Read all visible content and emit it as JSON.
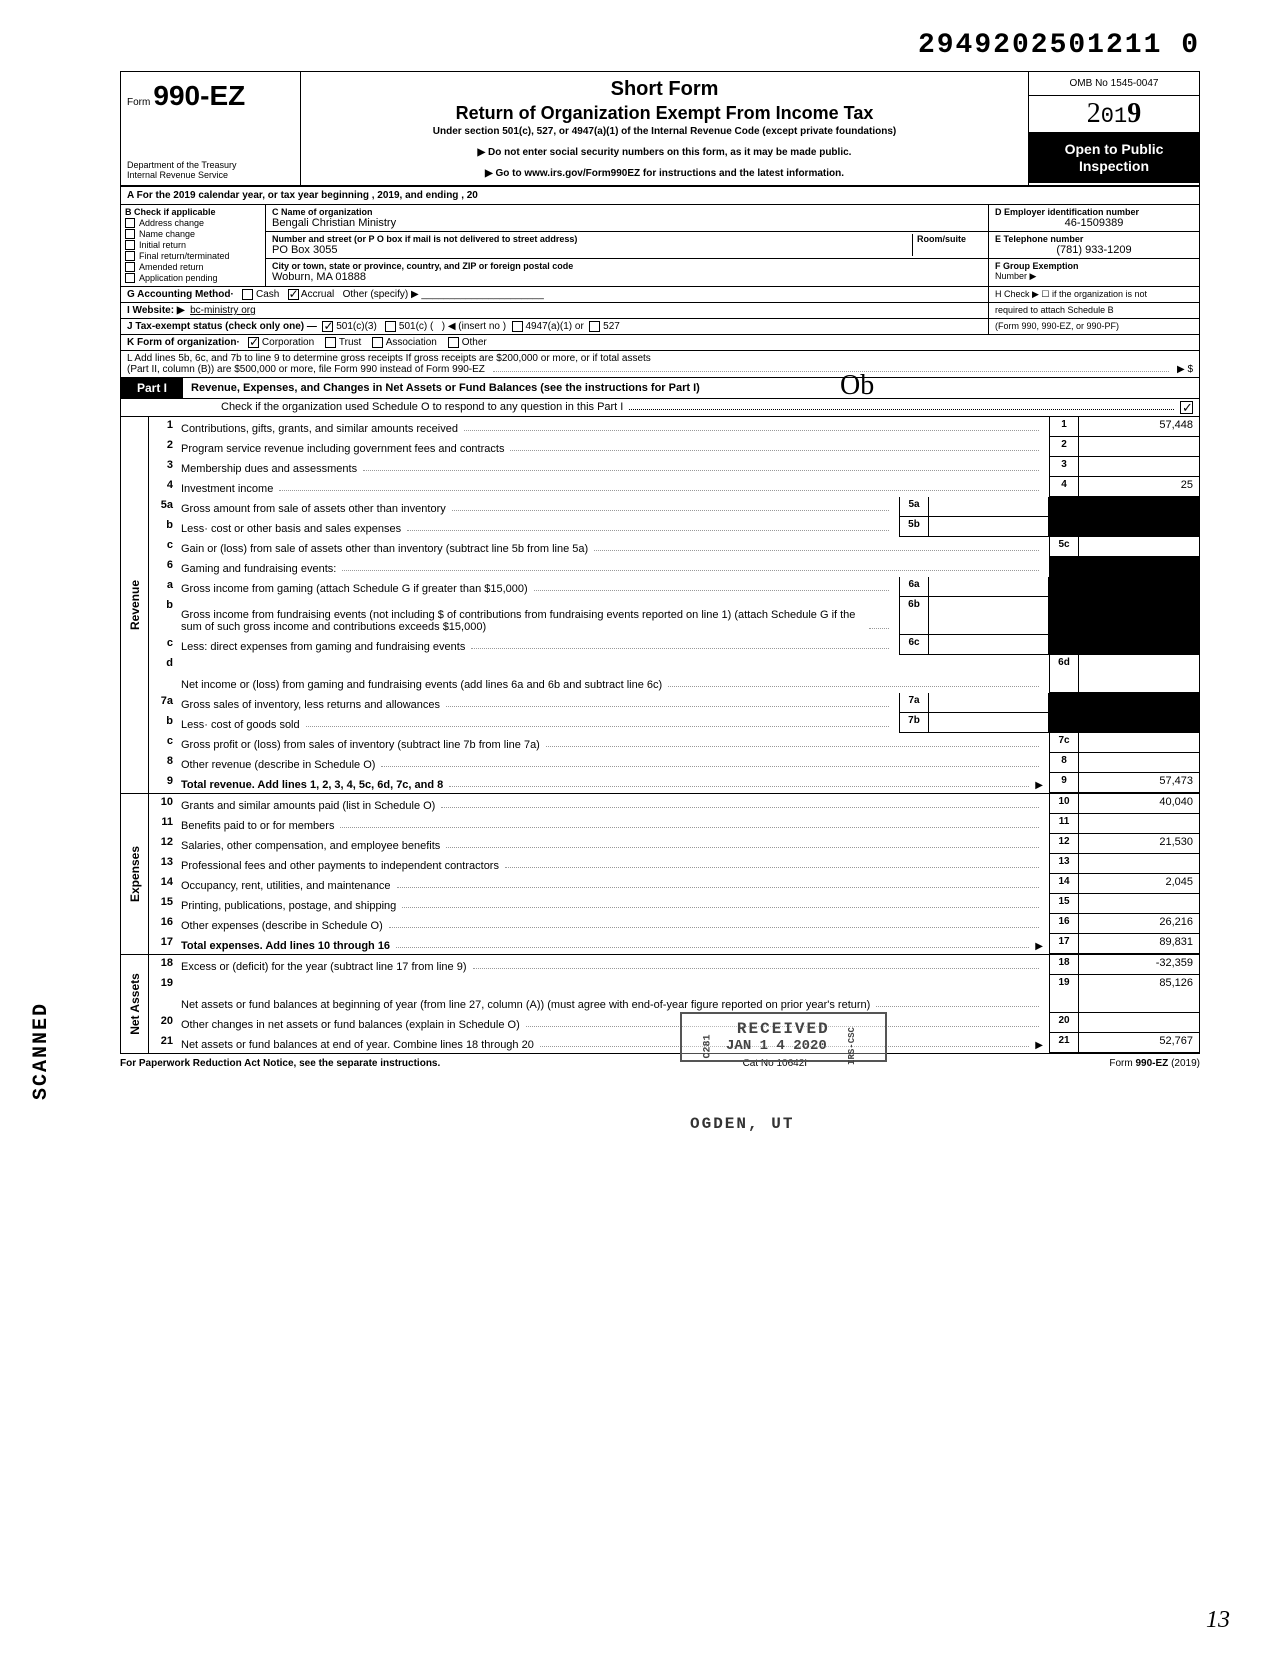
{
  "dln": "2949202501211 0",
  "header": {
    "form_prefix": "Form",
    "form_number": "990-EZ",
    "short_form": "Short Form",
    "title": "Return of Organization Exempt From Income Tax",
    "under": "Under section 501(c), 527, or 4947(a)(1) of the Internal Revenue Code (except private foundations)",
    "warn1": "▶ Do not enter social security numbers on this form, as it may be made public.",
    "warn2": "▶ Go to www.irs.gov/Form990EZ for instructions and the latest information.",
    "dept1": "Department of the Treasury",
    "dept2": "Internal Revenue Service",
    "omb": "OMB No 1545-0047",
    "year_outline": "2",
    "year_mid": "01",
    "year_bold": "9",
    "open_public": "Open to Public Inspection"
  },
  "rowA": "A  For the 2019 calendar year, or tax year beginning                                                          , 2019, and ending                                      , 20",
  "colB": {
    "title": "B  Check if applicable",
    "items": [
      "Address change",
      "Name change",
      "Initial return",
      "Final return/terminated",
      "Amended return",
      "Application pending"
    ]
  },
  "colC": {
    "name_lbl": "C  Name of organization",
    "name": "Bengali Christian Ministry",
    "street_lbl": "Number and street (or P O  box if mail is not delivered to street address)",
    "room_lbl": "Room/suite",
    "street": "PO Box 3055",
    "city_lbl": "City or town, state or province, country, and ZIP or foreign postal code",
    "city": "Woburn, MA  01888"
  },
  "colDE": {
    "d_lbl": "D Employer identification number",
    "ein": "46-1509389",
    "e_lbl": "E  Telephone number",
    "phone": "(781) 933-1209",
    "f_lbl": "F  Group Exemption",
    "f_lbl2": "Number  ▶"
  },
  "rowG": {
    "left": "G  Accounting Method·",
    "cash": "Cash",
    "accrual": "Accrual",
    "other": "Other (specify) ▶",
    "h": "H  Check ▶ ☐ if the organization is not"
  },
  "rowI": {
    "lbl": "I   Website: ▶",
    "val": "bc-ministry org",
    "h2": "required to attach Schedule B"
  },
  "rowJ": {
    "lbl": "J  Tax-exempt status (check only one) —",
    "c3": "501(c)(3)",
    "c": "501(c) (",
    "insert": ") ◀ (insert no )",
    "a1": "4947(a)(1) or",
    "s527": "527",
    "h3": "(Form 990, 990-EZ, or 990-PF)"
  },
  "rowK": {
    "lbl": "K  Form of organization·",
    "corp": "Corporation",
    "trust": "Trust",
    "assoc": "Association",
    "other": "Other"
  },
  "rowL": {
    "l1": "L  Add lines 5b, 6c, and 7b to line 9 to determine gross receipts  If gross receipts are $200,000 or more, or if total assets",
    "l2": "(Part II, column (B)) are $500,000 or more, file Form 990 instead of Form 990-EZ",
    "arrow": "▶    $"
  },
  "part1": {
    "label": "Part I",
    "title": "Revenue, Expenses, and Changes in Net Assets or Fund Balances (see the instructions for Part I)",
    "check_line": "Check if the organization used Schedule O to respond to any question in this Part I"
  },
  "sections": [
    {
      "side": "Revenue",
      "rows": [
        {
          "n": "1",
          "d": "Contributions, gifts, grants, and similar amounts received",
          "rn": "1",
          "rv": "57,448"
        },
        {
          "n": "2",
          "d": "Program service revenue including government fees and contracts",
          "rn": "2",
          "rv": ""
        },
        {
          "n": "3",
          "d": "Membership dues and assessments",
          "rn": "3",
          "rv": ""
        },
        {
          "n": "4",
          "d": "Investment income",
          "rn": "4",
          "rv": "25"
        },
        {
          "n": "5a",
          "d": "Gross amount from sale of assets other than inventory",
          "mb": "5a",
          "shadeR": true
        },
        {
          "n": "b",
          "d": "Less· cost or other basis and sales expenses",
          "mb": "5b",
          "shadeR": true
        },
        {
          "n": "c",
          "d": "Gain or (loss) from sale of assets other than inventory (subtract line 5b from line 5a)",
          "rn": "5c",
          "rv": ""
        },
        {
          "n": "6",
          "d": "Gaming and fundraising events:",
          "shadeR": true,
          "noRtBorder": true
        },
        {
          "n": "a",
          "d": "Gross income from gaming (attach Schedule G if greater than $15,000)",
          "mb": "6a",
          "shadeR": true
        },
        {
          "n": "b",
          "d": "Gross income from fundraising events (not including  $                           of contributions from fundraising events reported on line 1) (attach Schedule G if the sum of such gross income and contributions exceeds $15,000)",
          "mb": "6b",
          "shadeR": true,
          "tall": true
        },
        {
          "n": "c",
          "d": "Less: direct expenses from gaming and fundraising events",
          "mb": "6c",
          "shadeR": true
        },
        {
          "n": "d",
          "d": "Net income or (loss) from gaming and fundraising events (add lines 6a and 6b and subtract line 6c)",
          "rn": "6d",
          "rv": "",
          "tall": true
        },
        {
          "n": "7a",
          "d": "Gross sales of inventory, less returns and allowances",
          "mb": "7a",
          "shadeR": true
        },
        {
          "n": "b",
          "d": "Less· cost of goods sold",
          "mb": "7b",
          "shadeR": true
        },
        {
          "n": "c",
          "d": "Gross profit or (loss) from sales of inventory (subtract line 7b from line 7a)",
          "rn": "7c",
          "rv": ""
        },
        {
          "n": "8",
          "d": "Other revenue (describe in Schedule O)",
          "rn": "8",
          "rv": ""
        },
        {
          "n": "9",
          "d": "Total revenue. Add lines 1, 2, 3, 4, 5c, 6d, 7c, and 8",
          "rn": "9",
          "rv": "57,473",
          "bold": true,
          "arrow": true
        }
      ]
    },
    {
      "side": "Expenses",
      "rows": [
        {
          "n": "10",
          "d": "Grants and similar amounts paid (list in Schedule O)",
          "rn": "10",
          "rv": "40,040"
        },
        {
          "n": "11",
          "d": "Benefits paid to or for members",
          "rn": "11",
          "rv": ""
        },
        {
          "n": "12",
          "d": "Salaries, other compensation, and employee benefits",
          "rn": "12",
          "rv": "21,530"
        },
        {
          "n": "13",
          "d": "Professional fees and other payments to independent contractors",
          "rn": "13",
          "rv": ""
        },
        {
          "n": "14",
          "d": "Occupancy, rent, utilities, and maintenance",
          "rn": "14",
          "rv": "2,045"
        },
        {
          "n": "15",
          "d": "Printing, publications, postage, and shipping",
          "rn": "15",
          "rv": ""
        },
        {
          "n": "16",
          "d": "Other expenses (describe in Schedule O)",
          "rn": "16",
          "rv": "26,216"
        },
        {
          "n": "17",
          "d": "Total expenses. Add lines 10 through 16",
          "rn": "17",
          "rv": "89,831",
          "bold": true,
          "arrow": true
        }
      ]
    },
    {
      "side": "Net Assets",
      "rows": [
        {
          "n": "18",
          "d": "Excess or (deficit) for the year (subtract line 17 from line 9)",
          "rn": "18",
          "rv": "-32,359"
        },
        {
          "n": "19",
          "d": "Net assets or fund balances at beginning of year (from line 27, column (A)) (must agree with end-of-year figure reported on prior year's return)",
          "rn": "19",
          "rv": "85,126",
          "tall": true,
          "shadeRtop": true
        },
        {
          "n": "20",
          "d": "Other changes in net assets or fund balances (explain in Schedule O)",
          "rn": "20",
          "rv": ""
        },
        {
          "n": "21",
          "d": "Net assets or fund balances at end of year. Combine lines 18 through 20",
          "rn": "21",
          "rv": "52,767",
          "arrow": true
        }
      ]
    }
  ],
  "footer": {
    "left": "For Paperwork Reduction Act Notice, see the separate instructions.",
    "mid": "Cat  No  10642I",
    "right_pre": "Form ",
    "right_form": "990-EZ",
    "right_post": " (2019)"
  },
  "stamps": {
    "scanned": "SCANNED",
    "received": "RECEIVED",
    "rec_date": "JAN 1 4 2020",
    "c281": "C281",
    "irs": "IRS-CSC",
    "ogden": "OGDEN, UT",
    "initial": "Ob",
    "pagenum": "13"
  }
}
